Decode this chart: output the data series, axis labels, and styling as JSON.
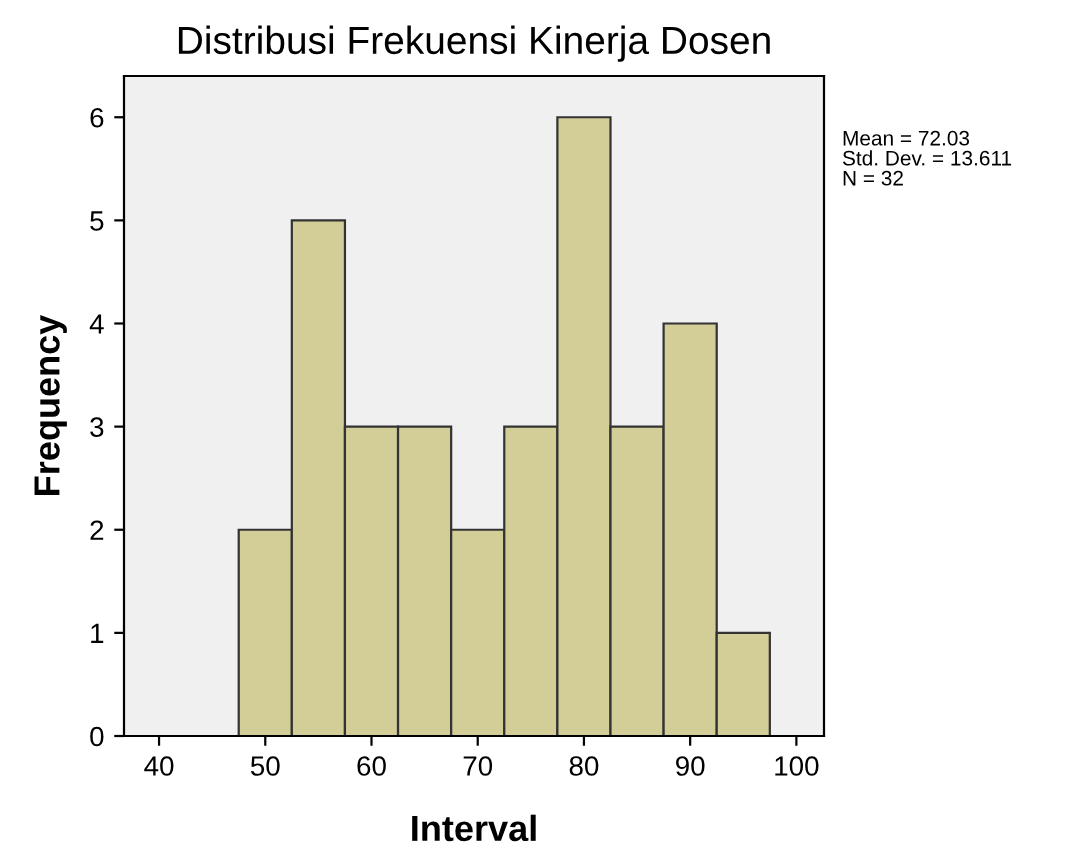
{
  "chart_data": {
    "type": "histogram",
    "title": "Distribusi Frekuensi Kinerja Dosen",
    "xlabel": "Interval",
    "ylabel": "Frequency",
    "bins": [
      47.5,
      52.5,
      57.5,
      62.5,
      67.5,
      72.5,
      77.5,
      82.5,
      87.5,
      92.5,
      97.5
    ],
    "values": [
      2,
      5,
      3,
      3,
      2,
      3,
      6,
      3,
      4,
      1
    ],
    "color": "#d3ce97",
    "xlim": [
      36.7,
      102.6
    ],
    "xticks": [
      40,
      50,
      60,
      70,
      80,
      90,
      100
    ],
    "ylim": [
      0,
      6.4
    ],
    "yticks": [
      0,
      1,
      2,
      3,
      4,
      5,
      6
    ],
    "grid": false,
    "legend": false,
    "annotations": [
      "Mean = 72.03",
      "Std. Dev. = 13.611",
      "N = 32"
    ]
  }
}
